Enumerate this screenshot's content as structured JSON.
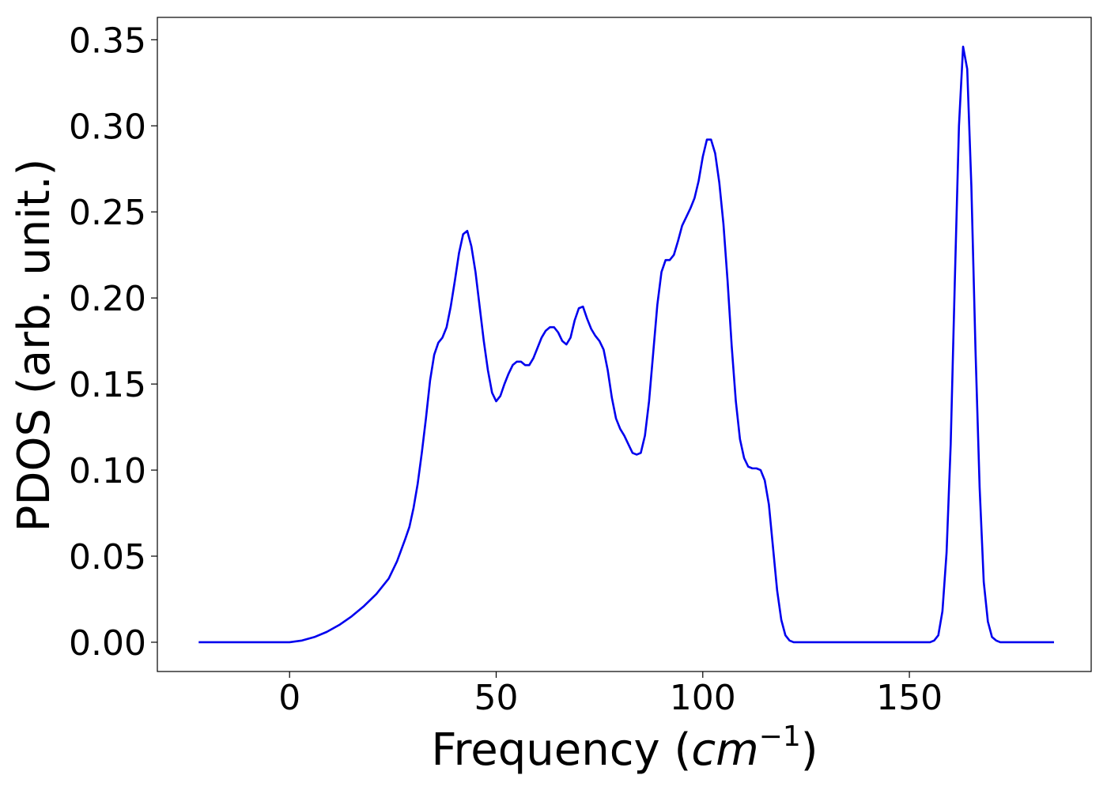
{
  "chart_data": {
    "type": "line",
    "xlabel": "Frequency",
    "xlabel_unit": "cm",
    "xlabel_unit_exp": "−1",
    "ylabel": "PDOS (arb. unit.)",
    "xlim": [
      -32,
      194
    ],
    "ylim": [
      -0.017,
      0.363
    ],
    "xticks": [
      0,
      50,
      100,
      150
    ],
    "xtick_labels": [
      "0",
      "50",
      "100",
      "150"
    ],
    "yticks": [
      0.0,
      0.05,
      0.1,
      0.15,
      0.2,
      0.25,
      0.3,
      0.35
    ],
    "ytick_labels": [
      "0.00",
      "0.05",
      "0.10",
      "0.15",
      "0.20",
      "0.25",
      "0.30",
      "0.35"
    ],
    "grid": false,
    "line_color": "#0000ee",
    "series": [
      {
        "x": [
          -22,
          -10,
          0,
          3,
          6,
          9,
          12,
          15,
          18,
          21,
          24,
          26,
          28,
          29,
          30,
          31,
          32,
          33,
          34,
          35,
          36,
          37,
          38,
          39,
          40,
          41,
          42,
          43,
          44,
          45,
          46,
          47,
          48,
          49,
          50,
          51,
          52,
          53,
          54,
          55,
          56,
          57,
          58,
          59,
          60,
          61,
          62,
          63,
          64,
          65,
          66,
          67,
          68,
          69,
          70,
          71,
          72,
          73,
          74,
          75,
          76,
          77,
          78,
          79,
          80,
          81,
          82,
          83,
          84,
          85,
          86,
          87,
          88,
          89,
          90,
          91,
          92,
          93,
          94,
          95,
          96,
          97,
          98,
          99,
          100,
          101,
          102,
          103,
          104,
          105,
          106,
          107,
          108,
          109,
          110,
          111,
          112,
          113,
          114,
          115,
          116,
          117,
          118,
          119,
          120,
          121,
          122,
          124,
          130,
          140,
          150,
          155,
          156,
          157,
          158,
          159,
          160,
          161,
          162,
          163,
          164,
          165,
          166,
          167,
          168,
          169,
          170,
          171,
          172,
          174,
          185
        ],
        "y": [
          0.0,
          0.0,
          0.0,
          0.001,
          0.003,
          0.006,
          0.01,
          0.015,
          0.021,
          0.028,
          0.037,
          0.047,
          0.06,
          0.067,
          0.078,
          0.092,
          0.11,
          0.13,
          0.152,
          0.167,
          0.174,
          0.177,
          0.183,
          0.195,
          0.21,
          0.226,
          0.237,
          0.239,
          0.23,
          0.215,
          0.195,
          0.175,
          0.158,
          0.145,
          0.14,
          0.143,
          0.15,
          0.156,
          0.161,
          0.163,
          0.163,
          0.161,
          0.161,
          0.165,
          0.171,
          0.177,
          0.181,
          0.183,
          0.183,
          0.18,
          0.175,
          0.173,
          0.177,
          0.187,
          0.194,
          0.195,
          0.188,
          0.182,
          0.178,
          0.175,
          0.17,
          0.158,
          0.142,
          0.13,
          0.124,
          0.12,
          0.115,
          0.11,
          0.109,
          0.11,
          0.12,
          0.14,
          0.168,
          0.196,
          0.215,
          0.222,
          0.222,
          0.225,
          0.233,
          0.242,
          0.247,
          0.252,
          0.258,
          0.268,
          0.282,
          0.292,
          0.292,
          0.284,
          0.267,
          0.243,
          0.21,
          0.172,
          0.14,
          0.118,
          0.107,
          0.102,
          0.101,
          0.101,
          0.1,
          0.094,
          0.08,
          0.055,
          0.03,
          0.013,
          0.004,
          0.001,
          0.0,
          0.0,
          0.0,
          0.0,
          0.0,
          0.0,
          0.001,
          0.004,
          0.018,
          0.052,
          0.115,
          0.21,
          0.3,
          0.346,
          0.333,
          0.265,
          0.17,
          0.09,
          0.035,
          0.012,
          0.003,
          0.001,
          0.0,
          0.0,
          0.0
        ]
      }
    ]
  }
}
